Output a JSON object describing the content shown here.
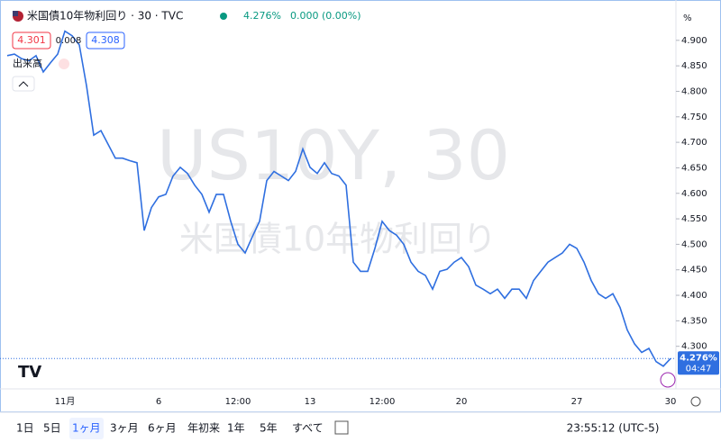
{
  "header": {
    "symbol": "米国債10年物利回り · 30 · TVC",
    "price": "4.276%",
    "change": "0.000 (0.00%)",
    "bid": "4.301",
    "spread": "0.008",
    "ask": "4.308",
    "volume": "出来高",
    "unit": "%"
  },
  "chart_data": {
    "type": "line",
    "watermark": "US10Y, 30",
    "watermark_name": "米国債10年物利回り",
    "color": "#2f6fe0",
    "categories": [
      null,
      null,
      null,
      null,
      null,
      null,
      null,
      null,
      "11月",
      null,
      null,
      null,
      null,
      null,
      null,
      null,
      null,
      null,
      null,
      null,
      null,
      "6",
      null,
      null,
      null,
      null,
      null,
      null,
      null,
      null,
      null,
      null,
      "12:00",
      null,
      null,
      null,
      null,
      null,
      null,
      null,
      null,
      null,
      "13",
      null,
      null,
      null,
      null,
      null,
      null,
      null,
      null,
      null,
      "12:00",
      null,
      null,
      null,
      null,
      null,
      null,
      null,
      null,
      null,
      null,
      "20",
      null,
      null,
      null,
      null,
      null,
      null,
      null,
      null,
      null,
      null,
      null,
      null,
      null,
      null,
      null,
      "27",
      null,
      null,
      null,
      null,
      null,
      null,
      null,
      null,
      null,
      null,
      null,
      null,
      "30"
    ],
    "values": [
      4.87,
      4.873,
      4.864,
      4.86,
      4.87,
      4.838,
      4.856,
      4.873,
      4.918,
      4.909,
      4.891,
      4.811,
      4.714,
      4.723,
      4.696,
      4.669,
      4.669,
      4.664,
      4.66,
      4.527,
      4.572,
      4.593,
      4.598,
      4.634,
      4.651,
      4.639,
      4.616,
      4.598,
      4.563,
      4.598,
      4.598,
      4.545,
      4.5,
      4.483,
      4.515,
      4.545,
      4.625,
      4.643,
      4.634,
      4.625,
      4.643,
      4.687,
      4.651,
      4.639,
      4.66,
      4.639,
      4.634,
      4.616,
      4.465,
      4.447,
      4.447,
      4.492,
      4.545,
      4.527,
      4.518,
      4.5,
      4.465,
      4.447,
      4.439,
      4.412,
      4.447,
      4.451,
      4.465,
      4.474,
      4.456,
      4.42,
      4.412,
      4.403,
      4.412,
      4.394,
      4.412,
      4.412,
      4.394,
      4.429,
      4.447,
      4.465,
      4.474,
      4.483,
      4.5,
      4.492,
      4.465,
      4.429,
      4.403,
      4.394,
      4.403,
      4.376,
      4.332,
      4.305,
      4.288,
      4.296,
      4.27,
      4.261,
      4.276
    ],
    "ylim": [
      4.22,
      4.965
    ],
    "yticks": [
      {
        "value": 4.3,
        "label": "4.300"
      },
      {
        "value": 4.35,
        "label": "4.350"
      },
      {
        "value": 4.4,
        "label": "4.400"
      },
      {
        "value": 4.45,
        "label": "4.450"
      },
      {
        "value": 4.5,
        "label": "4.500"
      },
      {
        "value": 4.55,
        "label": "4.550"
      },
      {
        "value": 4.6,
        "label": "4.600"
      },
      {
        "value": 4.65,
        "label": "4.650"
      },
      {
        "value": 4.7,
        "label": "4.700"
      },
      {
        "value": 4.75,
        "label": "4.750"
      },
      {
        "value": 4.8,
        "label": "4.800"
      },
      {
        "value": 4.85,
        "label": "4.850"
      },
      {
        "value": 4.9,
        "label": "4.900"
      }
    ],
    "last_price": {
      "value": 4.276,
      "label": "4.276%"
    },
    "countdown": "04:47"
  },
  "toolbar": {
    "ranges": [
      "1日",
      "5日",
      "1ヶ月",
      "3ヶ月",
      "6ヶ月",
      "年初来",
      "1年",
      "5年",
      "すべて"
    ],
    "clock": "23:55:12 (UTC-5)"
  }
}
